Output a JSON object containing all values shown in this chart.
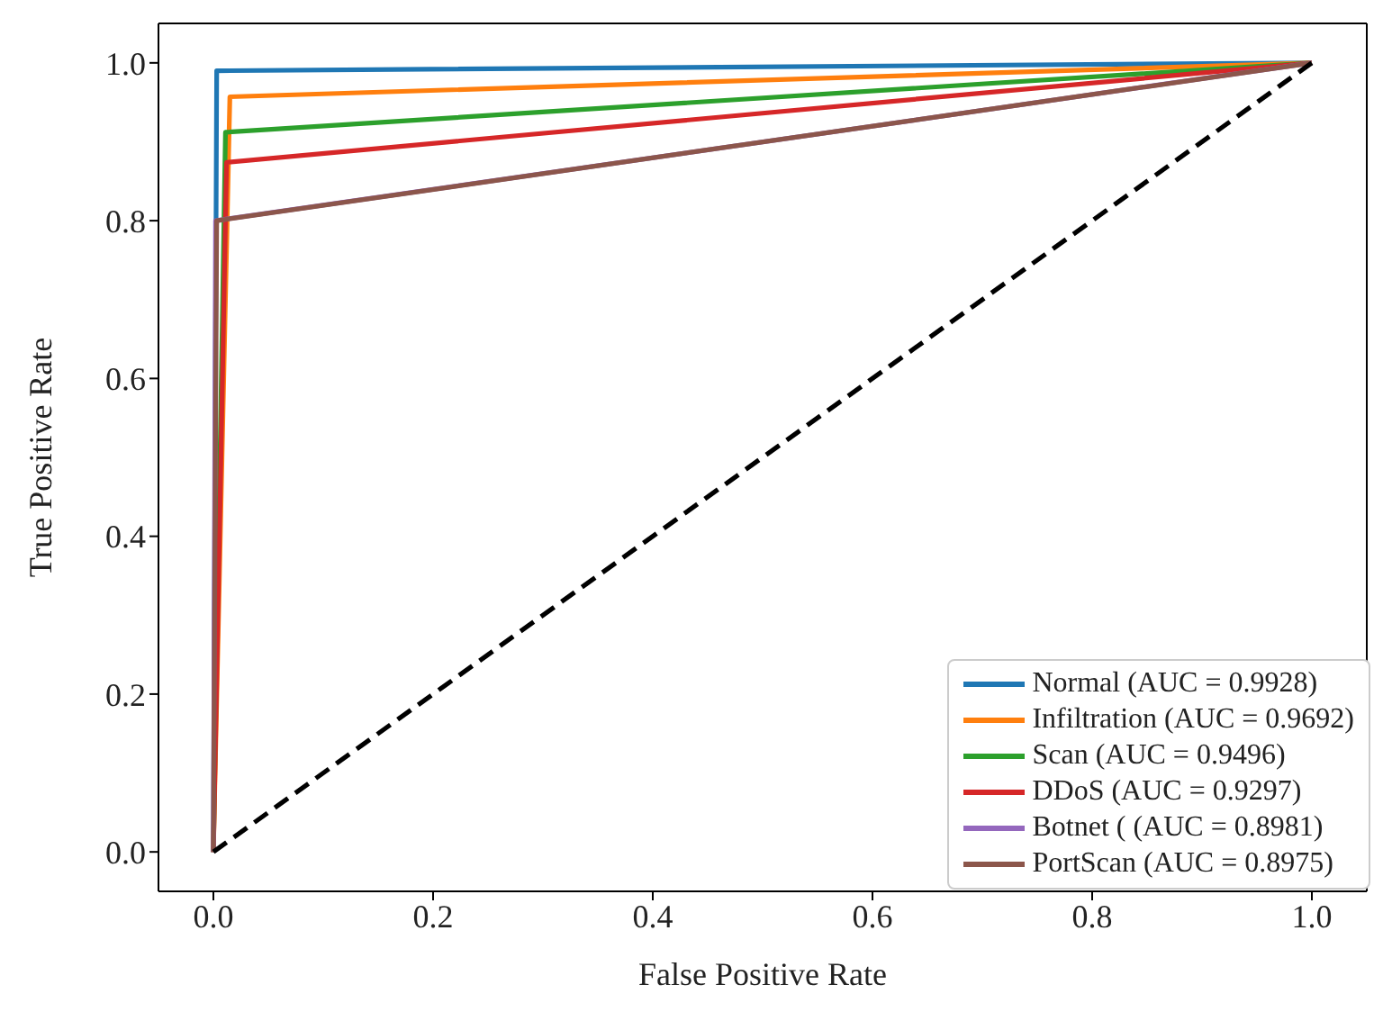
{
  "chart_data": {
    "type": "line",
    "xlabel": "False Positive Rate",
    "ylabel": "True Positive Rate",
    "xlim": [
      -0.05,
      1.05
    ],
    "ylim": [
      -0.05,
      1.05
    ],
    "xticks": [
      {
        "value": 0,
        "label": "0.0"
      },
      0.2,
      0.4,
      0.6,
      0.8,
      {
        "value": 1,
        "label": "1.0"
      }
    ],
    "yticks": [
      {
        "value": 0,
        "label": "0.0"
      },
      0.2,
      0.4,
      0.6,
      0.8,
      {
        "value": 1,
        "label": "1.0"
      }
    ],
    "grid": false,
    "legend": "bottom right",
    "marker": "none",
    "series": [
      {
        "name": "Normal (AUC = 0.9928)",
        "color": "#1f77b4",
        "x": [
          0,
          0.003,
          1
        ],
        "values": [
          0,
          0.99,
          1
        ]
      },
      {
        "name": "Infiltration (AUC = 0.9692)",
        "color": "#ff7f0e",
        "x": [
          0,
          0.015,
          1
        ],
        "values": [
          0,
          0.957,
          1
        ]
      },
      {
        "name": "Scan (AUC = 0.9496)",
        "color": "#2ca02c",
        "x": [
          0,
          0.011,
          1
        ],
        "values": [
          0,
          0.912,
          1
        ]
      },
      {
        "name": "DDoS (AUC = 0.9297)",
        "color": "#d62728",
        "x": [
          0,
          0.012,
          1
        ],
        "values": [
          0,
          0.874,
          1
        ]
      },
      {
        "name": "Botnet ( (AUC = 0.8981)",
        "color": "#9467bd",
        "x": [
          0,
          0.002,
          1
        ],
        "values": [
          0,
          0.8,
          1
        ]
      },
      {
        "name": "PortScan (AUC = 0.8975)",
        "color": "#8c564b",
        "x": [
          0,
          0.003,
          1
        ],
        "values": [
          0,
          0.8,
          1
        ]
      },
      {
        "color": "#000000",
        "line_style": "dashed",
        "x": [
          0,
          1
        ],
        "values": [
          0,
          1
        ]
      }
    ]
  }
}
